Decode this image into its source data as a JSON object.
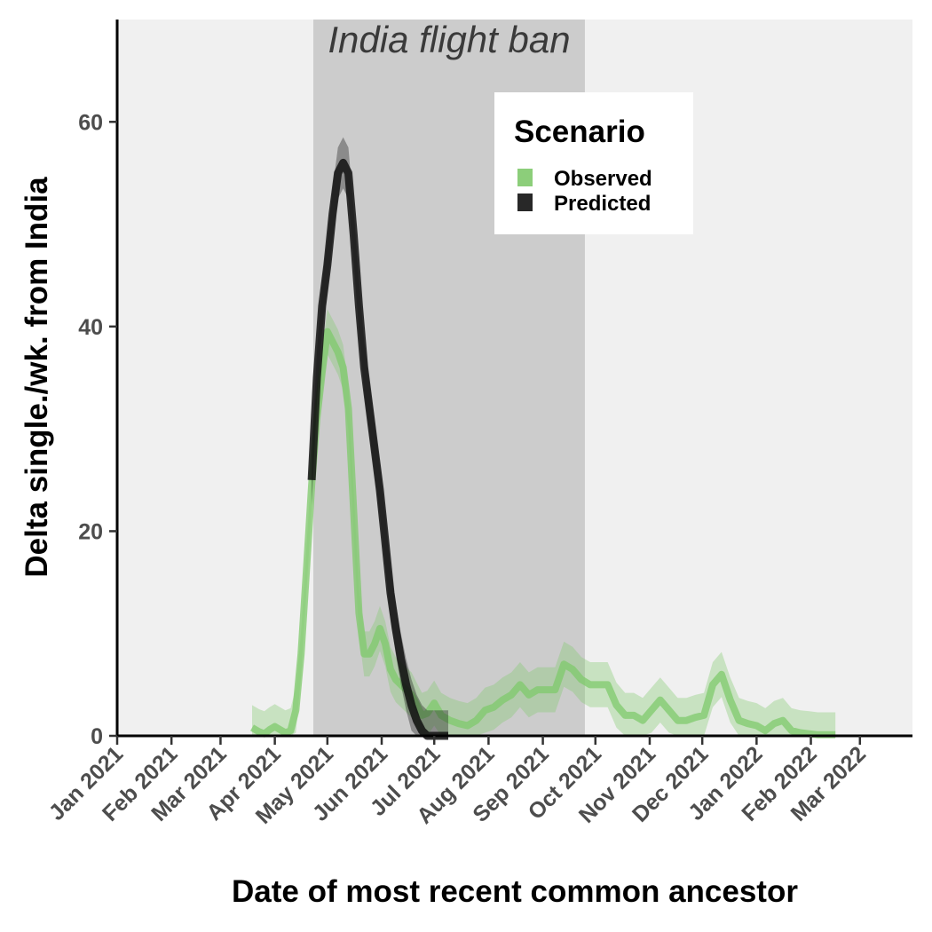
{
  "chart_data": {
    "type": "line",
    "xlabel": "Date of most recent common ancestor",
    "ylabel": "Delta single./wk. from India",
    "xlim": [
      "2021-01-01",
      "2022-03-31"
    ],
    "ylim": [
      0,
      70
    ],
    "grid": false,
    "legend_position": "top-right",
    "x_ticks": [
      "2021-01-01",
      "2021-02-01",
      "2021-03-01",
      "2021-04-01",
      "2021-05-01",
      "2021-06-01",
      "2021-07-01",
      "2021-08-01",
      "2021-09-01",
      "2021-10-01",
      "2021-11-01",
      "2021-12-01",
      "2022-01-01",
      "2022-02-01",
      "2022-03-01"
    ],
    "x_tick_labels": [
      "Jan 2021",
      "Feb 2021",
      "Mar 2021",
      "Apr 2021",
      "May 2021",
      "Jun 2021",
      "Jul 2021",
      "Aug 2021",
      "Sep 2021",
      "Oct 2021",
      "Nov 2021",
      "Dec 2021",
      "Jan 2022",
      "Feb 2022",
      "Mar 2022"
    ],
    "y_ticks": [
      0,
      20,
      40,
      60
    ],
    "y_tick_labels": [
      "0",
      "20",
      "40",
      "60"
    ],
    "shaded_region": {
      "label": "India flight ban",
      "x_start": "2021-04-23",
      "x_end": "2021-09-25",
      "color": "#cccccc"
    },
    "legend": {
      "title": "Scenario",
      "entries": [
        {
          "name": "Observed",
          "color": "#7fc96b"
        },
        {
          "name": "Predicted",
          "color": "#111111"
        }
      ]
    },
    "colors": {
      "panel_background": "#f0f0f0",
      "observed": "#7fc96b",
      "predicted": "#111111"
    },
    "series": [
      {
        "name": "Observed",
        "x": [
          "2021-03-19",
          "2021-03-23",
          "2021-03-26",
          "2021-03-29",
          "2021-04-01",
          "2021-04-04",
          "2021-04-07",
          "2021-04-10",
          "2021-04-13",
          "2021-04-16",
          "2021-04-19",
          "2021-04-22",
          "2021-04-25",
          "2021-04-28",
          "2021-05-01",
          "2021-05-04",
          "2021-05-07",
          "2021-05-10",
          "2021-05-13",
          "2021-05-16",
          "2021-05-19",
          "2021-05-22",
          "2021-05-25",
          "2021-05-28",
          "2021-05-31",
          "2021-06-03",
          "2021-06-06",
          "2021-06-09",
          "2021-06-12",
          "2021-06-15",
          "2021-06-18",
          "2021-06-21",
          "2021-06-24",
          "2021-06-27",
          "2021-07-01",
          "2021-07-05",
          "2021-07-10",
          "2021-07-15",
          "2021-07-20",
          "2021-07-25",
          "2021-07-30",
          "2021-08-04",
          "2021-08-09",
          "2021-08-14",
          "2021-08-19",
          "2021-08-24",
          "2021-08-29",
          "2021-09-03",
          "2021-09-08",
          "2021-09-13",
          "2021-09-18",
          "2021-09-23",
          "2021-09-28",
          "2021-10-03",
          "2021-10-08",
          "2021-10-13",
          "2021-10-18",
          "2021-10-23",
          "2021-10-28",
          "2021-11-02",
          "2021-11-07",
          "2021-11-12",
          "2021-11-17",
          "2021-11-22",
          "2021-11-27",
          "2021-12-02",
          "2021-12-07",
          "2021-12-12",
          "2021-12-17",
          "2021-12-22",
          "2021-12-27",
          "2022-01-01",
          "2022-01-06",
          "2022-01-11",
          "2022-01-16",
          "2022-01-21",
          "2022-01-26",
          "2022-01-31",
          "2022-02-05",
          "2022-02-10",
          "2022-02-15"
        ],
        "y": [
          0.8,
          0.4,
          0.2,
          0.6,
          0.9,
          0.6,
          0.3,
          0.5,
          2.5,
          8.0,
          16.0,
          24.5,
          31.0,
          35.5,
          39.5,
          38.5,
          37.5,
          36.0,
          32.0,
          22.0,
          12.0,
          8.0,
          8.0,
          9.0,
          10.5,
          9.0,
          6.5,
          5.5,
          5.0,
          4.5,
          4.0,
          3.0,
          2.0,
          2.2,
          3.2,
          2.0,
          1.5,
          1.2,
          1.0,
          1.5,
          2.5,
          2.8,
          3.5,
          4.0,
          5.0,
          4.0,
          4.5,
          4.5,
          4.5,
          7.0,
          6.5,
          5.5,
          5.0,
          5.0,
          5.0,
          3.0,
          2.0,
          2.0,
          1.5,
          2.5,
          3.5,
          2.5,
          1.5,
          1.5,
          1.8,
          2.0,
          5.0,
          6.0,
          3.5,
          1.5,
          1.2,
          1.0,
          0.5,
          1.2,
          1.5,
          0.5,
          0.3,
          0.2,
          0.1,
          0.1,
          0.1
        ]
      },
      {
        "name": "Predicted",
        "x": [
          "2021-04-22",
          "2021-04-25",
          "2021-04-28",
          "2021-05-01",
          "2021-05-04",
          "2021-05-07",
          "2021-05-10",
          "2021-05-13",
          "2021-05-16",
          "2021-05-19",
          "2021-05-22",
          "2021-05-25",
          "2021-05-28",
          "2021-05-31",
          "2021-06-03",
          "2021-06-06",
          "2021-06-09",
          "2021-06-12",
          "2021-06-15",
          "2021-06-18",
          "2021-06-21",
          "2021-06-24",
          "2021-06-27",
          "2021-06-30",
          "2021-07-03",
          "2021-07-06",
          "2021-07-09"
        ],
        "y": [
          25.0,
          35.0,
          42.0,
          46.0,
          51.0,
          55.0,
          56.0,
          55.0,
          49.0,
          42.0,
          36.0,
          32.0,
          28.0,
          24.0,
          19.0,
          14.0,
          10.5,
          7.5,
          5.0,
          3.0,
          1.5,
          0.5,
          0.0,
          0.0,
          0.0,
          0.0,
          0.0
        ]
      }
    ]
  }
}
